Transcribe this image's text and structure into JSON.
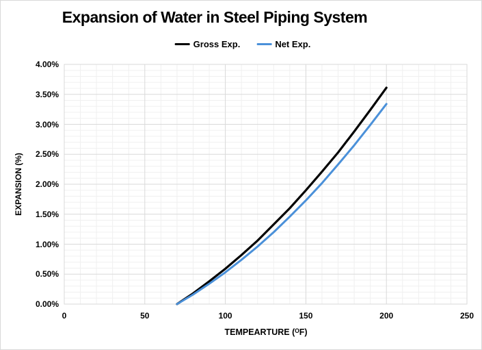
{
  "title": "Expansion of Water in Steel Piping System",
  "colors": {
    "gross_line": "#000000",
    "net_line": "#4a90d9",
    "grid_major": "#d9d9d9",
    "grid_minor": "#f0f0f0",
    "plot_border": "#d9d9d9",
    "text": "#000000"
  },
  "chart_data": {
    "type": "line",
    "title": "Expansion of Water in Steel Piping System",
    "xlabel": "TEMPEARTURE (ᴼF)",
    "ylabel": "EXPANSION (%)",
    "xlim": [
      0,
      250
    ],
    "ylim": [
      0,
      4
    ],
    "x_major_step": 50,
    "x_minor_step": 10,
    "y_major_step": 0.5,
    "y_minor_step": 0.1,
    "grid": "major and minor gridlines on, both axes",
    "legend_position": "top-center",
    "x_tick_labels": [
      "0",
      "50",
      "100",
      "150",
      "200",
      "250"
    ],
    "y_tick_labels": [
      "0.00%",
      "0.50%",
      "1.00%",
      "1.50%",
      "2.00%",
      "2.50%",
      "3.00%",
      "3.50%",
      "4.00%"
    ],
    "x": [
      70,
      80,
      90,
      100,
      110,
      120,
      130,
      140,
      150,
      160,
      170,
      180,
      190,
      200
    ],
    "series": [
      {
        "name": "Gross Exp.",
        "color": "#000000",
        "stroke_width": 3.2,
        "values": [
          0.0,
          0.18,
          0.38,
          0.59,
          0.82,
          1.06,
          1.33,
          1.6,
          1.9,
          2.21,
          2.53,
          2.88,
          3.24,
          3.61
        ]
      },
      {
        "name": "Net Exp.",
        "color": "#4a90d9",
        "stroke_width": 3.0,
        "values": [
          0.0,
          0.16,
          0.34,
          0.53,
          0.74,
          0.96,
          1.2,
          1.46,
          1.73,
          2.02,
          2.33,
          2.65,
          2.99,
          3.34
        ]
      }
    ]
  }
}
